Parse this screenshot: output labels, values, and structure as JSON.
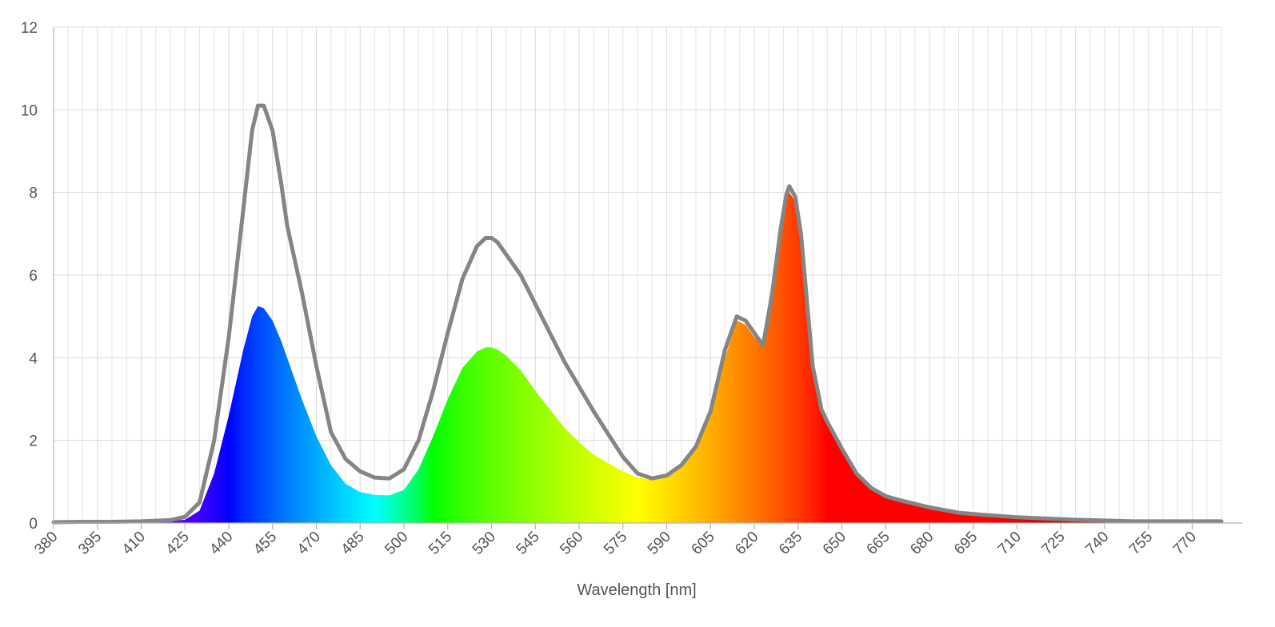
{
  "chart_data": {
    "type": "area",
    "title": "",
    "xlabel": "Wavelength [nm]",
    "ylabel": "",
    "xlim": [
      380,
      780
    ],
    "ylim": [
      0,
      12
    ],
    "grid": true,
    "x_ticks": [
      380,
      395,
      410,
      425,
      440,
      455,
      470,
      485,
      500,
      515,
      530,
      545,
      560,
      575,
      590,
      605,
      620,
      635,
      650,
      665,
      680,
      695,
      710,
      725,
      740,
      755,
      770
    ],
    "y_ticks": [
      0,
      2,
      4,
      6,
      8,
      10,
      12
    ],
    "x": [
      380,
      390,
      400,
      410,
      420,
      425,
      430,
      435,
      440,
      445,
      448,
      450,
      452,
      455,
      458,
      460,
      465,
      470,
      475,
      480,
      485,
      490,
      495,
      500,
      505,
      510,
      515,
      520,
      525,
      528,
      530,
      532,
      535,
      540,
      545,
      550,
      555,
      560,
      565,
      570,
      575,
      580,
      585,
      590,
      595,
      600,
      605,
      610,
      614,
      617,
      620,
      623,
      626,
      629,
      631,
      632,
      634,
      636,
      640,
      643,
      645,
      650,
      655,
      660,
      665,
      670,
      680,
      690,
      700,
      710,
      720,
      730,
      740,
      750,
      760,
      770,
      780
    ],
    "series": [
      {
        "style": "spectral fill",
        "values": [
          0.02,
          0.02,
          0.02,
          0.03,
          0.05,
          0.08,
          0.3,
          1.2,
          2.6,
          4.2,
          5.0,
          5.25,
          5.2,
          4.9,
          4.4,
          4.0,
          3.0,
          2.1,
          1.4,
          0.95,
          0.75,
          0.68,
          0.67,
          0.8,
          1.3,
          2.1,
          3.0,
          3.75,
          4.15,
          4.25,
          4.25,
          4.2,
          4.05,
          3.7,
          3.2,
          2.75,
          2.3,
          1.95,
          1.65,
          1.45,
          1.25,
          1.1,
          1.05,
          1.1,
          1.35,
          1.8,
          2.6,
          4.0,
          4.9,
          4.8,
          4.5,
          4.3,
          5.4,
          7.0,
          7.85,
          8.0,
          7.8,
          6.9,
          3.7,
          2.7,
          2.4,
          1.75,
          1.2,
          0.85,
          0.65,
          0.55,
          0.38,
          0.25,
          0.19,
          0.14,
          0.11,
          0.08,
          0.06,
          0.04,
          0.04,
          0.04,
          0.04
        ]
      },
      {
        "style": "gray line",
        "color": "#858585",
        "values": [
          0.02,
          0.03,
          0.03,
          0.04,
          0.07,
          0.15,
          0.5,
          2.0,
          4.5,
          7.6,
          9.5,
          10.1,
          10.1,
          9.5,
          8.2,
          7.2,
          5.6,
          3.8,
          2.2,
          1.55,
          1.25,
          1.1,
          1.08,
          1.3,
          2.0,
          3.2,
          4.6,
          5.9,
          6.7,
          6.9,
          6.9,
          6.8,
          6.5,
          6.0,
          5.3,
          4.6,
          3.9,
          3.3,
          2.7,
          2.15,
          1.6,
          1.2,
          1.08,
          1.15,
          1.4,
          1.85,
          2.7,
          4.2,
          5.0,
          4.9,
          4.6,
          4.3,
          5.5,
          7.1,
          7.95,
          8.15,
          7.9,
          7.0,
          3.8,
          2.75,
          2.45,
          1.8,
          1.2,
          0.85,
          0.65,
          0.55,
          0.38,
          0.25,
          0.19,
          0.14,
          0.11,
          0.08,
          0.06,
          0.04,
          0.04,
          0.04,
          0.04
        ]
      }
    ]
  }
}
